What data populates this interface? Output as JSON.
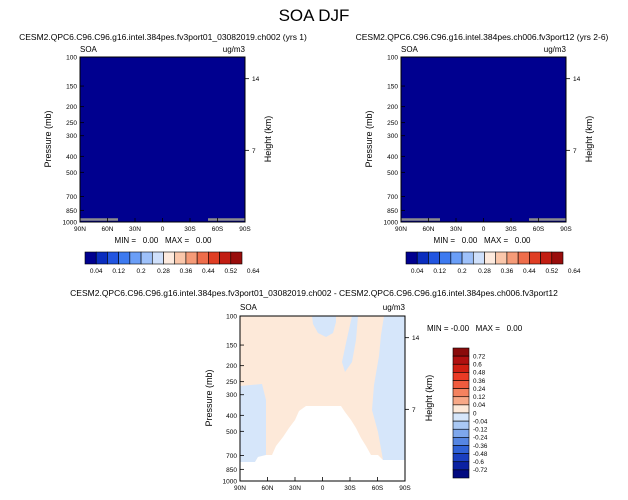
{
  "page_title": "SOA DJF",
  "chart_data": [
    {
      "type": "heatmap",
      "panel": "top-left",
      "title": "CESM2.QPC6.C96.C96.g16.intel.384pes.fv3port01_03082019.ch002 (yrs 1)",
      "left_label": "SOA",
      "right_label": "ug/m3",
      "xlabel": "",
      "ylabel": "Pressure (mb)",
      "y2label": "Height (km)",
      "x_ticks": [
        "90N",
        "60N",
        "30N",
        "0",
        "30S",
        "60S",
        "90S"
      ],
      "y_ticks": [
        "100",
        "150",
        "200",
        "250",
        "300",
        "400",
        "500",
        "700",
        "850",
        "1000"
      ],
      "y2_ticks": [
        "14",
        "7"
      ],
      "ylim": [
        1000,
        100
      ],
      "min": "0.00",
      "max": "0.00",
      "stats": "MIN =   0.00   MAX =   0.00",
      "field": "uniform 0.00 (lowest color bin)"
    },
    {
      "type": "heatmap",
      "panel": "top-right",
      "title": "CESM2.QPC6.C96.C96.g16.intel.384pes.ch006.fv3port12 (yrs 2-6)",
      "left_label": "SOA",
      "right_label": "ug/m3",
      "xlabel": "",
      "ylabel": "Pressure (mb)",
      "y2label": "Height (km)",
      "x_ticks": [
        "90N",
        "60N",
        "30N",
        "0",
        "30S",
        "60S",
        "90S"
      ],
      "y_ticks": [
        "100",
        "150",
        "200",
        "250",
        "300",
        "400",
        "500",
        "700",
        "850",
        "1000"
      ],
      "y2_ticks": [
        "14",
        "7"
      ],
      "ylim": [
        1000,
        100
      ],
      "min": "0.00",
      "max": "0.00",
      "stats": "MIN =   0.00   MAX =   0.00",
      "field": "uniform 0.00 (lowest color bin)"
    },
    {
      "type": "heatmap",
      "panel": "bottom-difference",
      "title": "CESM2.QPC6.C96.C96.g16.intel.384pes.fv3port01_03082019.ch002 - CESM2.QPC6.C96.C96.g16.intel.384pes.ch006.fv3port12",
      "left_label": "SOA",
      "right_label": "ug/m3",
      "xlabel": "",
      "ylabel": "Pressure (mb)",
      "y2label": "Height (km)",
      "x_ticks": [
        "90N",
        "60N",
        "30N",
        "0",
        "30S",
        "60S",
        "90S"
      ],
      "y_ticks": [
        "100",
        "150",
        "200",
        "250",
        "300",
        "400",
        "500",
        "700",
        "850",
        "1000"
      ],
      "y2_ticks": [
        "14",
        "7"
      ],
      "ylim": [
        1000,
        100
      ],
      "min": "-0.00",
      "max": "0.00",
      "stats": "MIN = -0.00   MAX =   0.00",
      "regions": [
        {
          "name": "upper troposphere small positive",
          "range": "0 to 0.04",
          "color": "#fde9d9"
        },
        {
          "name": "lateral and upper-trough small negative",
          "range": "-0.04 to 0",
          "color": "#d6e6fa"
        },
        {
          "name": "lower troposphere exactly zero",
          "range": "0",
          "color": "#ffffff"
        }
      ]
    }
  ],
  "colorbar_shared": {
    "orientation": "horizontal",
    "labels": [
      "0.04",
      "0.12",
      "0.2",
      "0.28",
      "0.36",
      "0.44",
      "0.52",
      "0.64"
    ],
    "colors": [
      "#00008f",
      "#0a2dbe",
      "#2255e0",
      "#3d7af0",
      "#6a9ef7",
      "#9ec1fa",
      "#cfe0fb",
      "#fdeade",
      "#fac7ab",
      "#f59b78",
      "#ee6d4b",
      "#df3e24",
      "#c21d12",
      "#990d0c"
    ]
  },
  "colorbar_diff": {
    "orientation": "vertical",
    "labels": [
      "0.72",
      "0.6",
      "0.48",
      "0.36",
      "0.24",
      "0.12",
      "0.04",
      "0",
      "-0.04",
      "-0.12",
      "-0.24",
      "-0.36",
      "-0.48",
      "-0.6",
      "-0.72"
    ],
    "colors": [
      "#8a0b0b",
      "#b01010",
      "#d01e12",
      "#ea3a25",
      "#f05b3e",
      "#f4825f",
      "#f7a887",
      "#fde9d9",
      "#d6e6fa",
      "#a9c8f4",
      "#7ea7ec",
      "#5686e2",
      "#3062d6",
      "#1a3fc0",
      "#0b22a2",
      "#020a80"
    ]
  }
}
